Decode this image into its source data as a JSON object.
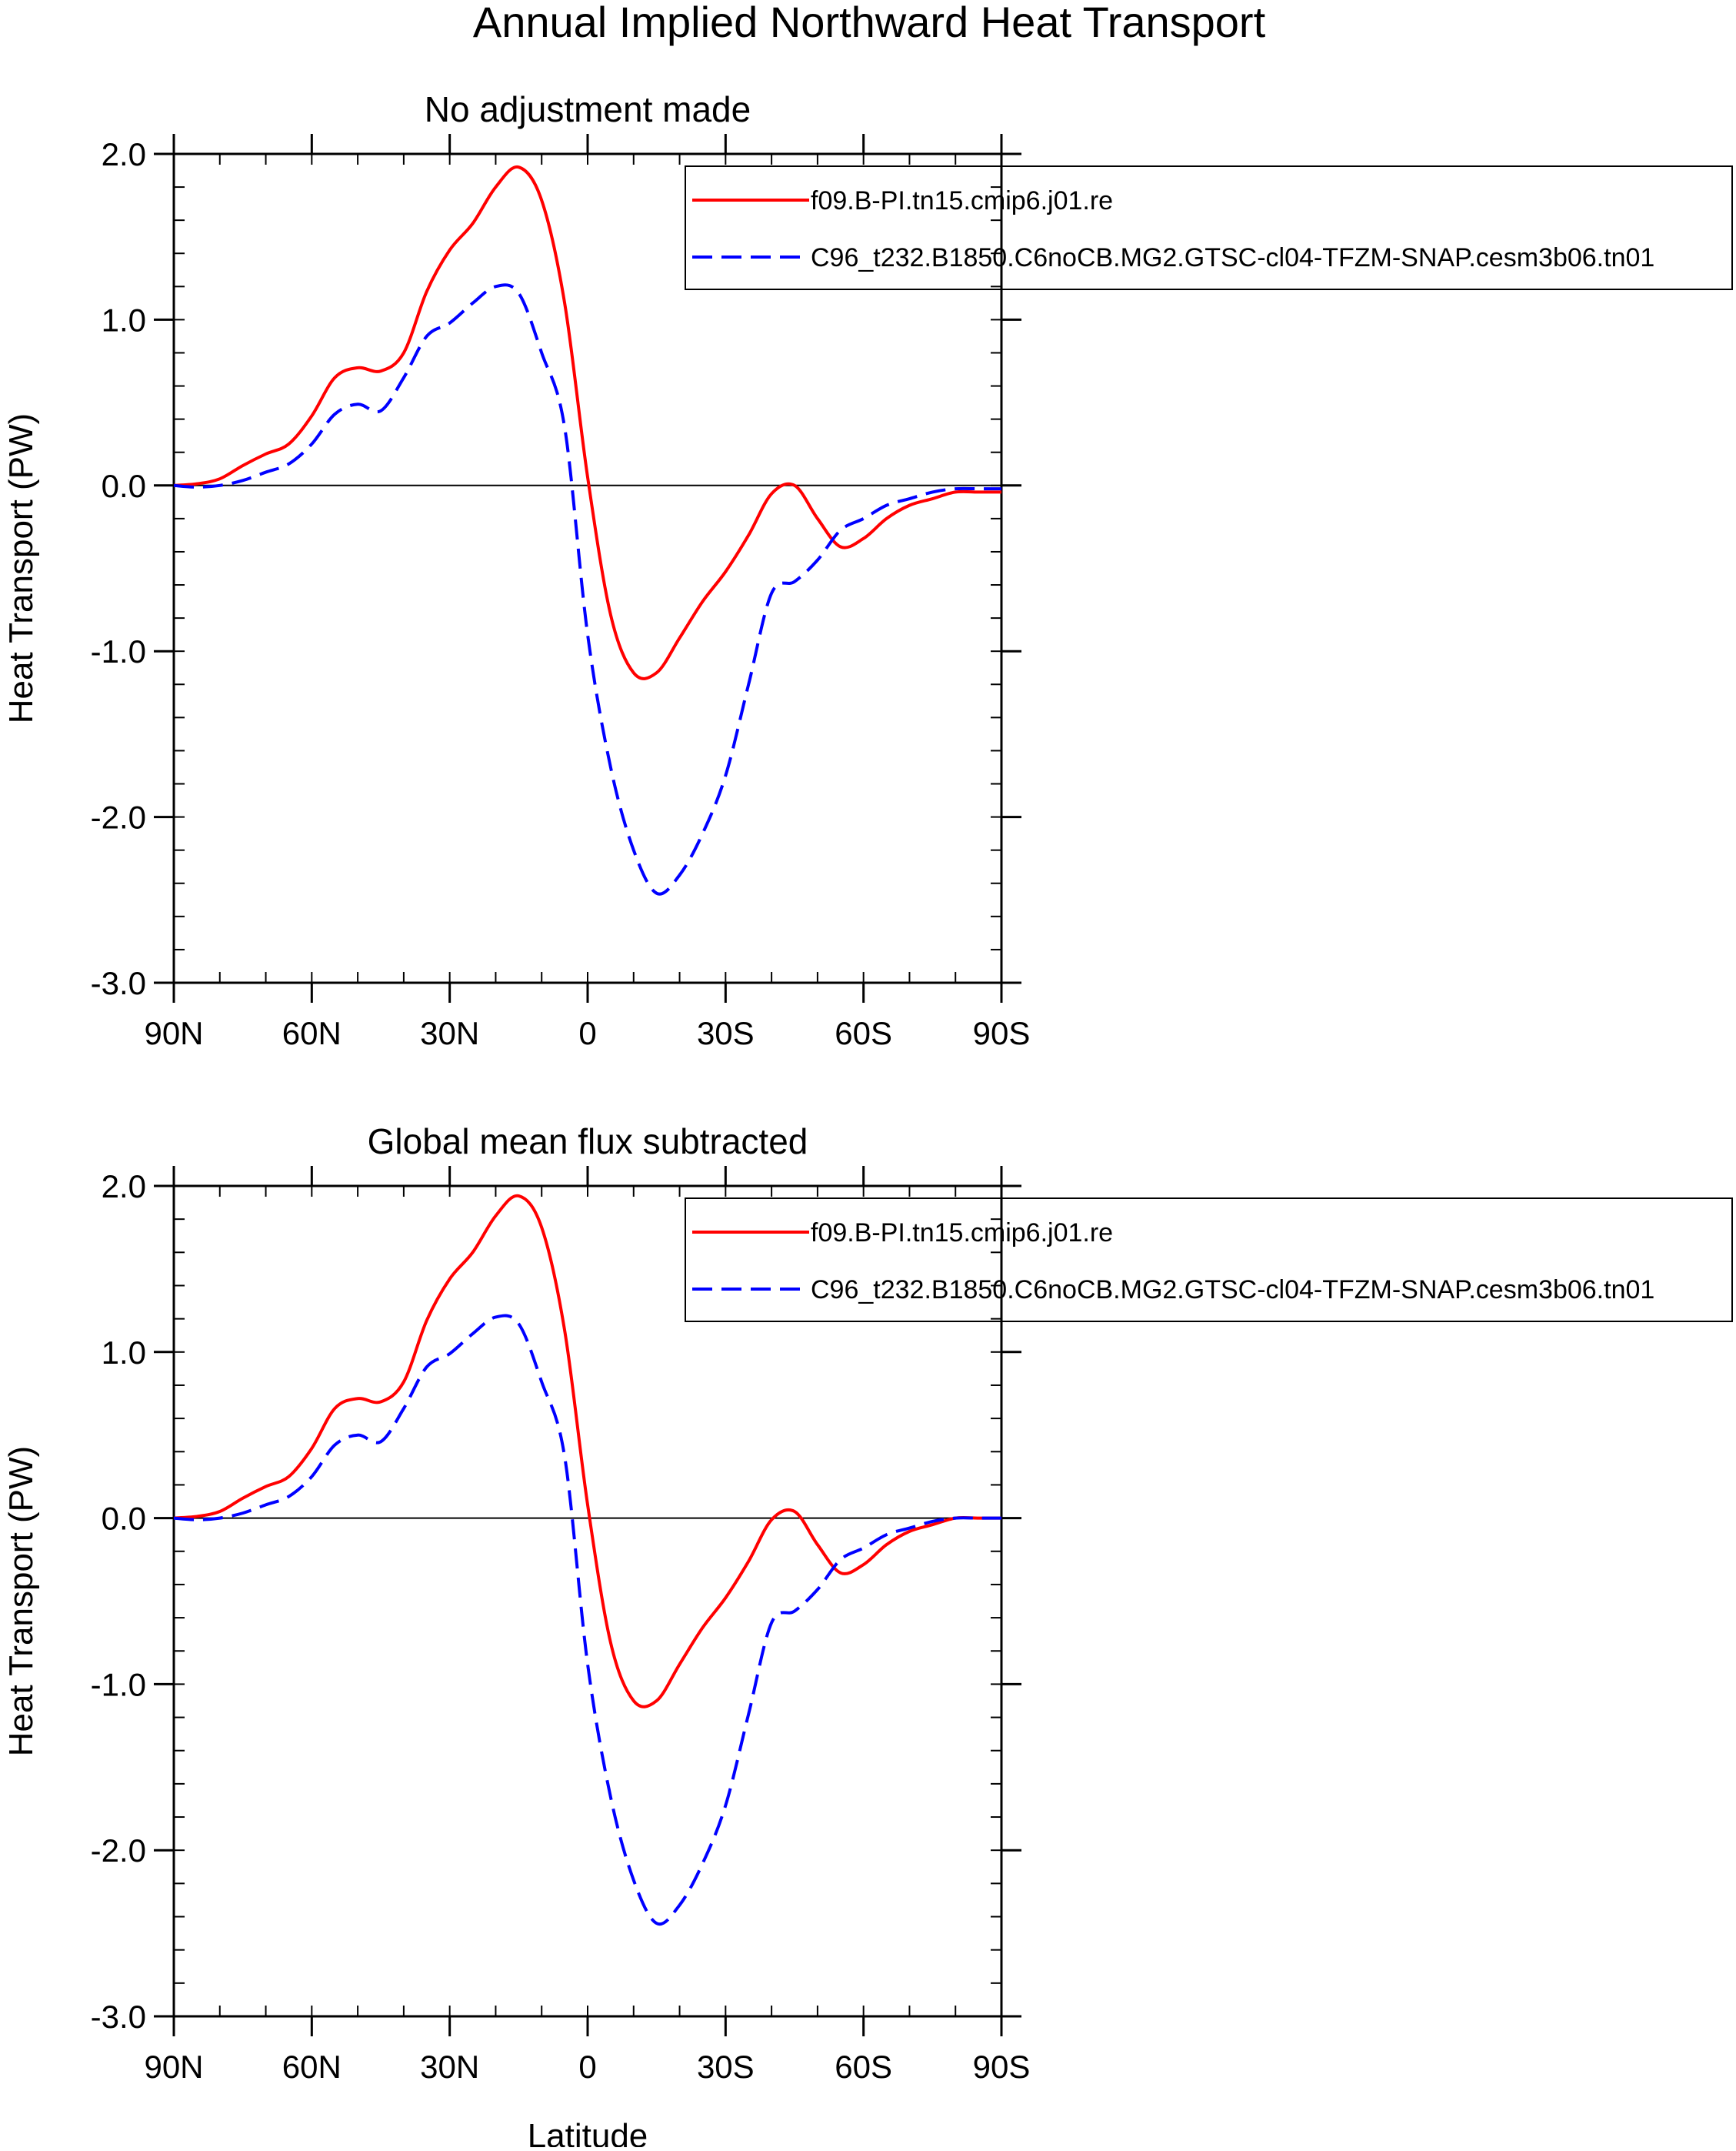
{
  "title": "Annual Implied Northward Heat Transport",
  "xlabel": "Latitude",
  "colors": {
    "series1": "#ff0000",
    "series2": "#0000ff"
  },
  "chart_data": [
    {
      "type": "line",
      "title": "No adjustment made",
      "ylabel": "Heat Transport (PW)",
      "xlim": [
        90,
        -90
      ],
      "ylim": [
        -3.0,
        2.0
      ],
      "xticks": [
        90,
        60,
        30,
        0,
        -30,
        -60,
        -90
      ],
      "xtick_labels": [
        "90N",
        "60N",
        "30N",
        "0",
        "30S",
        "60S",
        "90S"
      ],
      "yticks": [
        2.0,
        1.0,
        0.0,
        -1.0,
        -2.0,
        -3.0
      ],
      "ytick_labels": [
        "2.0",
        "1.0",
        "0.0",
        "-1.0",
        "-2.0",
        "-3.0"
      ],
      "legend_position": "top-right",
      "x": [
        90,
        85,
        80,
        75,
        70,
        65,
        60,
        55,
        50,
        45,
        40,
        35,
        30,
        25,
        20,
        15,
        10,
        5,
        0,
        -5,
        -10,
        -15,
        -20,
        -25,
        -30,
        -35,
        -40,
        -45,
        -50,
        -55,
        -60,
        -65,
        -70,
        -75,
        -80,
        -85,
        -90
      ],
      "series": [
        {
          "name": "f09.B-PI.tn15.cmip6.j01.re",
          "style": "solid",
          "values": [
            0,
            0.01,
            0.04,
            0.12,
            0.19,
            0.25,
            0.42,
            0.65,
            0.71,
            0.69,
            0.8,
            1.17,
            1.42,
            1.58,
            1.8,
            1.92,
            1.72,
            1.1,
            0.05,
            -0.78,
            -1.13,
            -1.13,
            -0.92,
            -0.7,
            -0.52,
            -0.3,
            -0.05,
            0.0,
            -0.2,
            -0.37,
            -0.32,
            -0.2,
            -0.12,
            -0.08,
            -0.04,
            -0.04,
            -0.04
          ]
        },
        {
          "name": "C96_t232.B1850.C6noCB.MG2.GTSC-cl04-TFZM-SNAP.cesm3b06.tn01",
          "style": "dashed",
          "values": [
            0,
            -0.01,
            0,
            0.03,
            0.08,
            0.13,
            0.25,
            0.43,
            0.49,
            0.45,
            0.65,
            0.9,
            0.98,
            1.1,
            1.2,
            1.16,
            0.8,
            0.35,
            -0.9,
            -1.7,
            -2.2,
            -2.46,
            -2.35,
            -2.1,
            -1.75,
            -1.2,
            -0.65,
            -0.58,
            -0.45,
            -0.27,
            -0.2,
            -0.12,
            -0.08,
            -0.04,
            -0.02,
            -0.02,
            -0.02
          ]
        }
      ]
    },
    {
      "type": "line",
      "title": "Global mean flux subtracted",
      "ylabel": "Heat Transport (PW)",
      "xlim": [
        90,
        -90
      ],
      "ylim": [
        -3.0,
        2.0
      ],
      "xticks": [
        90,
        60,
        30,
        0,
        -30,
        -60,
        -90
      ],
      "xtick_labels": [
        "90N",
        "60N",
        "30N",
        "0",
        "30S",
        "60S",
        "90S"
      ],
      "yticks": [
        2.0,
        1.0,
        0.0,
        -1.0,
        -2.0,
        -3.0
      ],
      "ytick_labels": [
        "2.0",
        "1.0",
        "0.0",
        "-1.0",
        "-2.0",
        "-3.0"
      ],
      "legend_position": "top-right",
      "x": [
        90,
        85,
        80,
        75,
        70,
        65,
        60,
        55,
        50,
        45,
        40,
        35,
        30,
        25,
        20,
        15,
        10,
        5,
        0,
        -5,
        -10,
        -15,
        -20,
        -25,
        -30,
        -35,
        -40,
        -45,
        -50,
        -55,
        -60,
        -65,
        -70,
        -75,
        -80,
        -85,
        -90
      ],
      "series": [
        {
          "name": "f09.B-PI.tn15.cmip6.j01.re",
          "style": "solid",
          "values": [
            0,
            0.01,
            0.04,
            0.12,
            0.19,
            0.25,
            0.42,
            0.66,
            0.72,
            0.7,
            0.82,
            1.19,
            1.44,
            1.6,
            1.82,
            1.94,
            1.75,
            1.13,
            0.08,
            -0.75,
            -1.1,
            -1.1,
            -0.88,
            -0.66,
            -0.48,
            -0.26,
            -0.01,
            0.04,
            -0.16,
            -0.33,
            -0.28,
            -0.16,
            -0.08,
            -0.04,
            0.0,
            0.0,
            0.0
          ]
        },
        {
          "name": "C96_t232.B1850.C6noCB.MG2.GTSC-cl04-TFZM-SNAP.cesm3b06.tn01",
          "style": "dashed",
          "values": [
            0,
            -0.01,
            0,
            0.03,
            0.08,
            0.13,
            0.25,
            0.44,
            0.5,
            0.46,
            0.66,
            0.91,
            0.99,
            1.11,
            1.21,
            1.17,
            0.82,
            0.37,
            -0.88,
            -1.68,
            -2.18,
            -2.44,
            -2.33,
            -2.08,
            -1.73,
            -1.18,
            -0.63,
            -0.56,
            -0.43,
            -0.25,
            -0.18,
            -0.1,
            -0.06,
            -0.02,
            0.0,
            0.0,
            0.0
          ]
        }
      ]
    }
  ]
}
